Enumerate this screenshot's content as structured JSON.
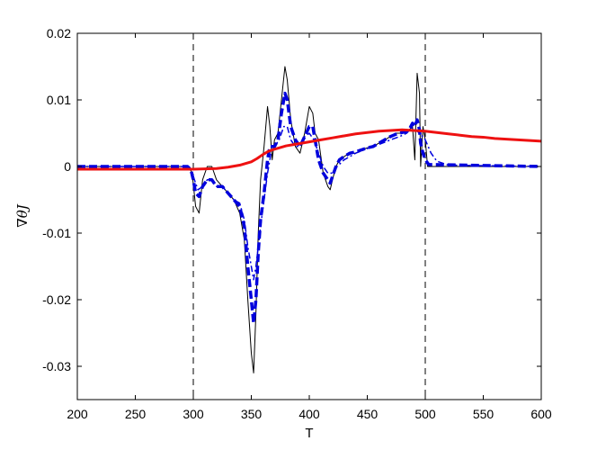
{
  "chart_data": {
    "type": "line",
    "title": "",
    "xlabel": "T",
    "ylabel": "∇θJ",
    "xlim": [
      200,
      600
    ],
    "ylim": [
      -0.035,
      0.02
    ],
    "xticks": [
      200,
      250,
      300,
      350,
      400,
      450,
      500,
      550,
      600
    ],
    "yticks": [
      -0.03,
      -0.02,
      -0.01,
      0,
      0.01,
      0.02
    ],
    "xtick_labels": [
      "200",
      "250",
      "300",
      "350",
      "400",
      "450",
      "500",
      "550",
      "600"
    ],
    "ytick_labels": [
      "-0.03",
      "-0.02",
      "-0.01",
      "0",
      "0.01",
      "0.02"
    ],
    "grid": false,
    "legend": "none",
    "vlines": [
      300,
      500
    ],
    "series": [
      {
        "color": "#000000",
        "style": "solid-thin",
        "x": [
          200,
          290,
          296,
          299,
          302,
          305,
          308,
          312,
          316,
          320,
          325,
          330,
          335,
          340,
          344,
          347,
          350,
          352,
          354,
          356,
          358,
          361,
          364,
          366,
          368,
          370,
          373,
          376,
          379,
          381,
          384,
          388,
          392,
          396,
          400,
          403,
          405,
          408,
          412,
          416,
          418,
          420,
          423,
          426,
          430,
          435,
          440,
          445,
          450,
          455,
          460,
          465,
          470,
          474,
          478,
          482,
          486,
          489,
          491,
          493,
          495,
          496,
          498,
          500,
          502,
          600
        ],
        "y": [
          0,
          0,
          0,
          -0.001,
          -0.006,
          -0.007,
          -0.002,
          0,
          0,
          -0.002,
          -0.003,
          -0.004,
          -0.005,
          -0.007,
          -0.011,
          -0.02,
          -0.028,
          -0.031,
          -0.022,
          -0.01,
          -0.002,
          0.003,
          0.009,
          0.006,
          0.001,
          0.004,
          0.005,
          0.01,
          0.015,
          0.013,
          0.007,
          0.003,
          0.002,
          0.005,
          0.009,
          0.008,
          0.005,
          0.004,
          -0.001,
          -0.003,
          -0.0035,
          -0.002,
          0,
          0.001,
          0.0015,
          0.002,
          0.002,
          0.0025,
          0.0028,
          0.003,
          0.0035,
          0.004,
          0.0045,
          0.005,
          0.005,
          0.005,
          0.0055,
          0.006,
          0.001,
          0.014,
          0.011,
          0.0,
          0.006,
          0.004,
          0,
          0
        ]
      },
      {
        "color": "#0000dd",
        "style": "dashed-thick",
        "x": [
          200,
          295,
          298,
          300,
          302,
          305,
          308,
          312,
          316,
          320,
          325,
          330,
          335,
          340,
          344,
          347,
          350,
          352,
          354,
          356,
          358,
          361,
          364,
          366,
          368,
          370,
          373,
          376,
          379,
          381,
          384,
          388,
          392,
          396,
          400,
          403,
          405,
          408,
          412,
          416,
          418,
          420,
          423,
          426,
          430,
          435,
          440,
          445,
          450,
          455,
          460,
          465,
          470,
          474,
          478,
          482,
          486,
          489,
          491,
          493,
          495,
          496,
          498,
          500,
          503,
          600
        ],
        "y": [
          0,
          0,
          -0.0005,
          -0.002,
          -0.004,
          -0.0045,
          -0.003,
          -0.002,
          -0.002,
          -0.003,
          -0.003,
          -0.004,
          -0.005,
          -0.006,
          -0.009,
          -0.015,
          -0.02,
          -0.0235,
          -0.02,
          -0.013,
          -0.008,
          -0.004,
          0.001,
          0.003,
          0.003,
          0.003,
          0.004,
          0.008,
          0.011,
          0.01,
          0.006,
          0.004,
          0.003,
          0.0045,
          0.006,
          0.006,
          0.004,
          0.001,
          -0.001,
          -0.002,
          -0.0025,
          -0.0015,
          0,
          0.001,
          0.0015,
          0.002,
          0.0022,
          0.0025,
          0.0028,
          0.003,
          0.0035,
          0.004,
          0.0045,
          0.0048,
          0.005,
          0.0052,
          0.0055,
          0.0065,
          0.006,
          0.007,
          0.0055,
          0.0035,
          0.002,
          0.001,
          0.0003,
          0
        ]
      },
      {
        "color": "#0000dd",
        "style": "dashdot",
        "x": [
          200,
          295,
          300,
          304,
          308,
          312,
          316,
          320,
          325,
          330,
          335,
          340,
          344,
          347,
          350,
          352,
          354,
          356,
          358,
          361,
          364,
          367,
          370,
          374,
          378,
          381,
          384,
          388,
          392,
          396,
          400,
          404,
          408,
          412,
          416,
          420,
          424,
          430,
          440,
          450,
          460,
          470,
          478,
          484,
          488,
          492,
          496,
          500,
          505,
          510,
          520,
          600
        ],
        "y": [
          0,
          0,
          -0.0015,
          -0.0035,
          -0.003,
          -0.002,
          -0.002,
          -0.003,
          -0.003,
          -0.004,
          -0.005,
          -0.0055,
          -0.008,
          -0.012,
          -0.015,
          -0.017,
          -0.015,
          -0.012,
          -0.009,
          -0.005,
          -0.001,
          0.002,
          0.003,
          0.004,
          0.006,
          0.006,
          0.004,
          0.003,
          0.003,
          0.0045,
          0.005,
          0.004,
          0.002,
          0,
          -0.001,
          -0.001,
          0,
          0.001,
          0.002,
          0.0027,
          0.0033,
          0.004,
          0.0045,
          0.005,
          0.0058,
          0.0055,
          0.0048,
          0.004,
          0.002,
          0.0008,
          0.0002,
          0
        ]
      },
      {
        "color": "#ee1111",
        "style": "solid-thick",
        "x": [
          200,
          250,
          300,
          320,
          330,
          340,
          350,
          355,
          360,
          365,
          370,
          380,
          390,
          400,
          410,
          420,
          430,
          440,
          450,
          460,
          470,
          480,
          490,
          500,
          510,
          520,
          530,
          540,
          550,
          560,
          570,
          580,
          590,
          600
        ],
        "y": [
          -0.0004,
          -0.0004,
          -0.0004,
          -0.0003,
          -0.0001,
          0.0002,
          0.0007,
          0.0012,
          0.0018,
          0.0023,
          0.0026,
          0.0031,
          0.0034,
          0.0037,
          0.004,
          0.0043,
          0.0046,
          0.0049,
          0.0051,
          0.0053,
          0.0054,
          0.0055,
          0.0054,
          0.0053,
          0.0051,
          0.0049,
          0.0047,
          0.0045,
          0.0044,
          0.0042,
          0.0041,
          0.004,
          0.0039,
          0.0038
        ]
      }
    ]
  }
}
